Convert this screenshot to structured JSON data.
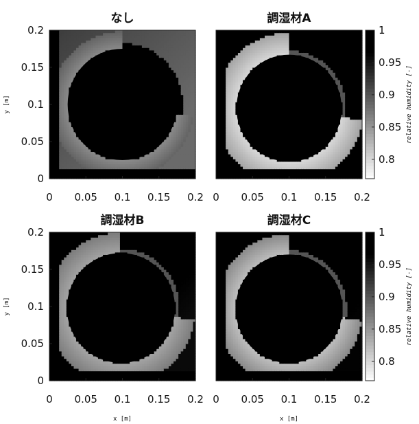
{
  "chart_data": [
    {
      "type": "heatmap",
      "title": "なし",
      "xlabel": "",
      "ylabel": "y [m]",
      "xlim": [
        0,
        0.2
      ],
      "ylim": [
        0,
        0.2
      ],
      "xticks": [
        "0",
        "0.05",
        "0.1",
        "0.15",
        "0.2"
      ],
      "yticks": [
        "0",
        "0.05",
        "0.1",
        "0.15",
        "0.2"
      ],
      "circle": {
        "cx": 0.1,
        "cy": 0.1,
        "r": 0.075,
        "value": 1.0
      },
      "field": {
        "wall_value": 0.87,
        "core_value": 1.0,
        "wall_width": 0.012,
        "band_low": 0.86,
        "band_high": 0.89,
        "band_width": 0.024,
        "bg_near": 0.92,
        "bg_far": 0.86,
        "wake_value": 0.97,
        "wake_width": 0.008
      }
    },
    {
      "type": "heatmap",
      "title": "調湿材A",
      "xlabel": "",
      "ylabel": "",
      "xlim": [
        0,
        0.2
      ],
      "ylim": [
        0,
        0.2
      ],
      "xticks": [
        "0",
        "0.05",
        "0.1",
        "0.15",
        "0.2"
      ],
      "yticks": [],
      "circle": {
        "cx": 0.1,
        "cy": 0.095,
        "r": 0.072,
        "value": 1.0
      },
      "field": {
        "wall_value": 0.84,
        "core_value": 1.0,
        "wall_width": 0.014,
        "band_low": 0.8,
        "band_high": 0.84,
        "band_width": 0.03,
        "bg_near": 1.0,
        "bg_far": 0.95,
        "wake_value": 0.9,
        "wake_width": 0.006
      },
      "colorbar": {
        "label": "relative humidity [-]",
        "min": 0.77,
        "max": 1.0,
        "ticks": [
          "0.8",
          "0.85",
          "0.9",
          "0.95",
          "1"
        ]
      }
    },
    {
      "type": "heatmap",
      "title": "調湿材B",
      "xlabel": "x [m]",
      "ylabel": "y [m]",
      "xlim": [
        0,
        0.2
      ],
      "ylim": [
        0,
        0.2
      ],
      "xticks": [
        "0",
        "0.05",
        "0.1",
        "0.15",
        "0.2"
      ],
      "yticks": [
        "0",
        "0.05",
        "0.1",
        "0.15",
        "0.2"
      ],
      "circle": {
        "cx": 0.098,
        "cy": 0.098,
        "r": 0.074,
        "value": 1.0
      },
      "field": {
        "wall_value": 0.86,
        "core_value": 1.0,
        "wall_width": 0.012,
        "band_low": 0.84,
        "band_high": 0.87,
        "band_width": 0.028,
        "bg_near": 1.0,
        "bg_far": 0.93,
        "wake_value": 0.9,
        "wake_width": 0.006
      }
    },
    {
      "type": "heatmap",
      "title": "調湿材C",
      "xlabel": "x [m]",
      "ylabel": "",
      "xlim": [
        0,
        0.2
      ],
      "ylim": [
        0,
        0.2
      ],
      "xticks": [
        "0",
        "0.05",
        "0.1",
        "0.15",
        "0.2"
      ],
      "yticks": [],
      "circle": {
        "cx": 0.1,
        "cy": 0.097,
        "r": 0.073,
        "value": 1.0
      },
      "field": {
        "wall_value": 0.86,
        "core_value": 1.0,
        "wall_width": 0.013,
        "band_low": 0.82,
        "band_high": 0.86,
        "band_width": 0.028,
        "bg_near": 1.0,
        "bg_far": 0.94,
        "wake_value": 0.9,
        "wake_width": 0.006
      },
      "colorbar": {
        "label": "relative humidity [-]",
        "min": 0.77,
        "max": 1.0,
        "ticks": [
          "0.8",
          "0.85",
          "0.9",
          "0.95",
          "1"
        ]
      }
    }
  ]
}
